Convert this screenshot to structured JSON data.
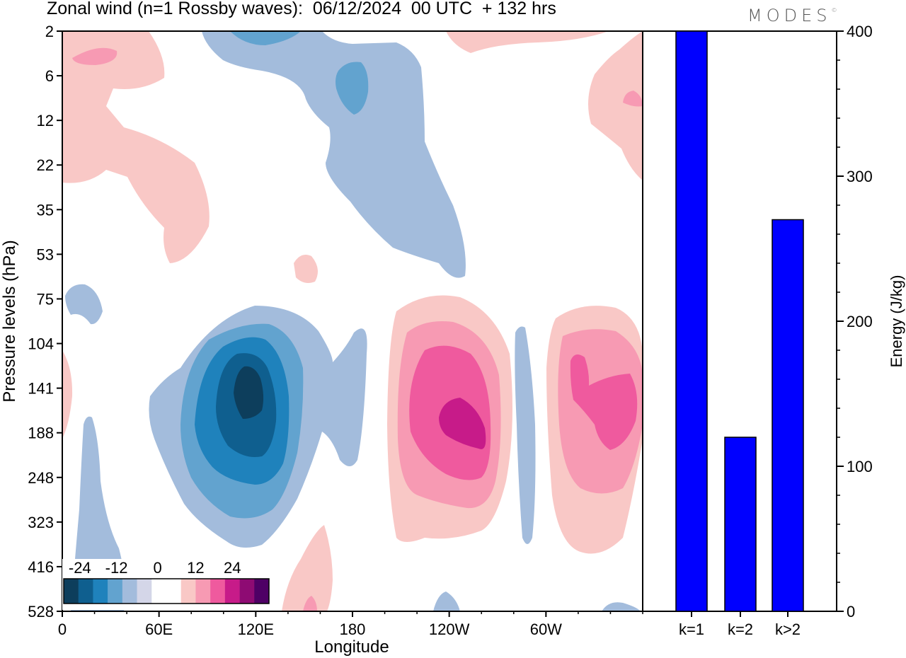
{
  "title": "Zonal wind (n=1 Rossby waves):  06/12/2024  00 UTC  + 132 hrs",
  "logo": "MODES",
  "logo_mark": "©",
  "colors": {
    "neg": [
      "#0d3e5c",
      "#0f5f8f",
      "#1f82bc",
      "#62a3cf",
      "#a3bcdc",
      "#d4d6e8"
    ],
    "neutral": "#ffffff",
    "pos": [
      "#f9c8c6",
      "#f79ab3",
      "#ef5a9e",
      "#c71b89",
      "#8e0b73",
      "#4e0065"
    ],
    "bar": "#0000ff"
  },
  "chart_data": [
    {
      "type": "heatmap",
      "title": "Zonal wind (n=1 Rossby waves):  06/12/2024  00 UTC  + 132 hrs",
      "xlabel": "Longitude",
      "ylabel": "Pressure levels (hPa)",
      "x_ticks": [
        "0",
        "60E",
        "120E",
        "180",
        "120W",
        "60W"
      ],
      "x_tick_values": [
        0,
        60,
        120,
        180,
        240,
        300
      ],
      "x_range": [
        0,
        360
      ],
      "y_ticks": [
        "2",
        "6",
        "12",
        "22",
        "35",
        "53",
        "75",
        "104",
        "141",
        "188",
        "248",
        "323",
        "416",
        "528"
      ],
      "colorbar_labels": [
        "-24",
        "-12",
        "0",
        "12",
        "24"
      ],
      "colorbar_levels": [
        -30,
        -25,
        -20,
        -15,
        -10,
        -5,
        0,
        5,
        10,
        15,
        20,
        25,
        30
      ],
      "features": [
        {
          "lon": 116,
          "level": "141",
          "value": -27
        },
        {
          "lon": 236,
          "level": "188",
          "value": 22
        },
        {
          "lon": 332,
          "level": "141",
          "value": 12
        },
        {
          "lon": 181,
          "level": "6",
          "value": -8
        },
        {
          "lon": 18,
          "level": "22",
          "value": 6
        }
      ]
    },
    {
      "type": "bar",
      "categories": [
        "k=1",
        "k=2",
        "k>2"
      ],
      "values": [
        400,
        120,
        270
      ],
      "ylabel": "Energy (J/kg)",
      "ylim": [
        0,
        400
      ],
      "y_ticks": [
        0,
        100,
        200,
        300,
        400
      ]
    }
  ]
}
